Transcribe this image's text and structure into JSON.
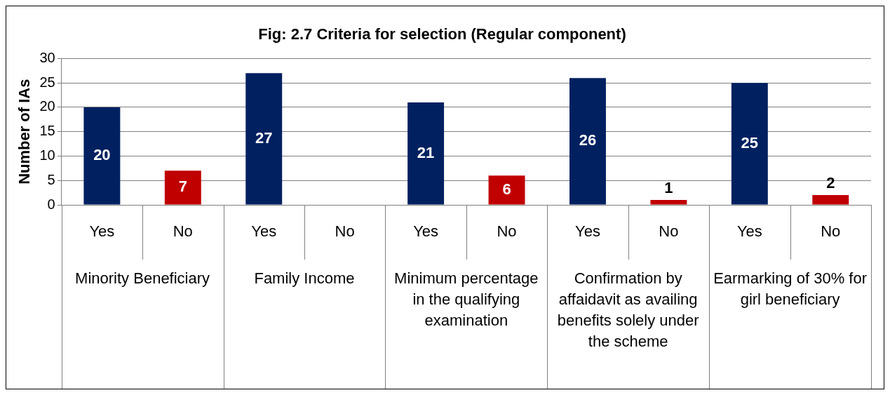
{
  "chart_data": {
    "type": "bar",
    "title": "Fig: 2.7 Criteria for selection (Regular component)",
    "ylabel": "Number of IAs",
    "categories": [
      "Yes",
      "No",
      "Yes",
      "No",
      "Yes",
      "No",
      "Yes",
      "No",
      "Yes",
      "No"
    ],
    "values": [
      20,
      7,
      27,
      0,
      21,
      6,
      26,
      1,
      25,
      2
    ],
    "colors": [
      "#002060",
      "#c00000",
      "#002060",
      "#c00000",
      "#002060",
      "#c00000",
      "#002060",
      "#c00000",
      "#002060",
      "#c00000"
    ],
    "value_labels": [
      "20",
      "7",
      "27",
      null,
      "21",
      "6",
      "26",
      "1",
      "25",
      "2"
    ],
    "annotations": [
      "Minority Beneficiary",
      "Family Income",
      "Minimum percentage in the qualifying examination",
      "Confirmation by affaidavit as availing benefits solely under the scheme",
      "Earmarking of 30% for girl beneficiary"
    ],
    "ylim": [
      0,
      30
    ],
    "yticks": [
      0,
      5,
      10,
      15,
      20,
      25,
      30
    ],
    "grid": "y",
    "legend": false
  }
}
